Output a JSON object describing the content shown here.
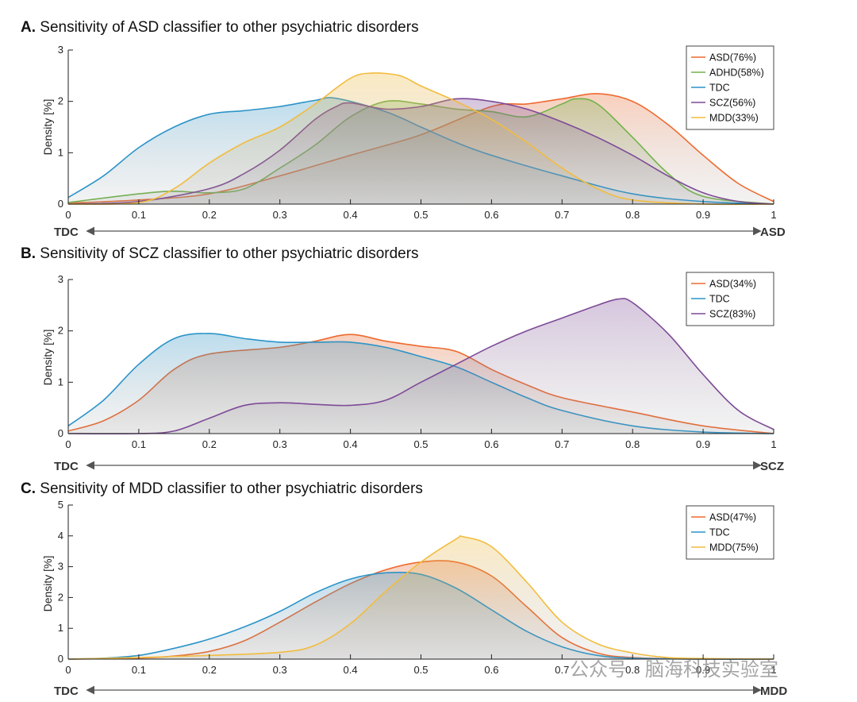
{
  "watermark": "公众号 · 脑海科技实验室",
  "colors": {
    "ASD": "#ED6A2F",
    "ADHD": "#72B34A",
    "TDC": "#2C94C8",
    "SCZ": "#7D4A97",
    "MDD": "#F2BC3E"
  },
  "chart_data": [
    {
      "type": "area",
      "panel_letter": "A.",
      "title": "Sensitivity of ASD classifier to other psychiatric disorders",
      "ylabel": "Density [%]",
      "xlim": [
        0,
        1
      ],
      "ylim": [
        0,
        3
      ],
      "xticks": [
        0,
        0.1,
        0.2,
        0.3,
        0.4,
        0.5,
        0.6,
        0.7,
        0.8,
        0.9,
        1
      ],
      "yticks": [
        0,
        1,
        2,
        3
      ],
      "left_label": "TDC",
      "right_label": "ASD",
      "legend_position": "top-right",
      "series": [
        {
          "key": "ASD",
          "name": "ASD(76%)",
          "x": [
            0,
            0.1,
            0.2,
            0.3,
            0.4,
            0.5,
            0.6,
            0.65,
            0.7,
            0.75,
            0.8,
            0.85,
            0.9,
            0.95,
            1
          ],
          "y": [
            0.02,
            0.08,
            0.2,
            0.55,
            0.95,
            1.35,
            1.9,
            1.95,
            2.05,
            2.15,
            2.0,
            1.55,
            0.95,
            0.4,
            0.05
          ]
        },
        {
          "key": "ADHD",
          "name": "ADHD(58%)",
          "x": [
            0,
            0.1,
            0.15,
            0.2,
            0.25,
            0.3,
            0.35,
            0.4,
            0.45,
            0.5,
            0.55,
            0.6,
            0.65,
            0.7,
            0.72,
            0.75,
            0.8,
            0.85,
            0.9,
            1
          ],
          "y": [
            0.03,
            0.2,
            0.25,
            0.22,
            0.3,
            0.7,
            1.15,
            1.7,
            2.0,
            1.95,
            1.85,
            1.8,
            1.7,
            1.95,
            2.05,
            1.95,
            1.3,
            0.6,
            0.15,
            0
          ]
        },
        {
          "key": "TDC",
          "name": "TDC",
          "x": [
            0,
            0.05,
            0.1,
            0.15,
            0.2,
            0.25,
            0.3,
            0.35,
            0.38,
            0.45,
            0.5,
            0.55,
            0.6,
            0.7,
            0.8,
            0.9,
            1
          ],
          "y": [
            0.13,
            0.55,
            1.1,
            1.5,
            1.75,
            1.82,
            1.9,
            2.02,
            2.06,
            1.8,
            1.5,
            1.2,
            0.95,
            0.55,
            0.2,
            0.05,
            0
          ]
        },
        {
          "key": "SCZ",
          "name": "SCZ(56%)",
          "x": [
            0,
            0.1,
            0.2,
            0.25,
            0.3,
            0.35,
            0.38,
            0.4,
            0.45,
            0.5,
            0.55,
            0.6,
            0.65,
            0.7,
            0.75,
            0.8,
            0.85,
            0.9,
            0.95,
            1
          ],
          "y": [
            0,
            0.05,
            0.3,
            0.6,
            1.05,
            1.65,
            1.9,
            1.97,
            1.85,
            1.9,
            2.05,
            2.0,
            1.85,
            1.6,
            1.3,
            0.95,
            0.55,
            0.22,
            0.05,
            0
          ]
        },
        {
          "key": "MDD",
          "name": "MDD(33%)",
          "x": [
            0,
            0.1,
            0.15,
            0.2,
            0.25,
            0.3,
            0.35,
            0.4,
            0.43,
            0.47,
            0.5,
            0.55,
            0.6,
            0.65,
            0.7,
            0.75,
            0.8,
            0.9,
            1
          ],
          "y": [
            0,
            0.03,
            0.3,
            0.8,
            1.2,
            1.5,
            1.95,
            2.45,
            2.55,
            2.5,
            2.3,
            2.0,
            1.65,
            1.2,
            0.7,
            0.3,
            0.08,
            0,
            0
          ]
        }
      ]
    },
    {
      "type": "area",
      "panel_letter": "B.",
      "title": "Sensitivity of SCZ classifier to other psychiatric disorders",
      "ylabel": "Density [%]",
      "xlim": [
        0,
        1
      ],
      "ylim": [
        0,
        3
      ],
      "xticks": [
        0,
        0.1,
        0.2,
        0.3,
        0.4,
        0.5,
        0.6,
        0.7,
        0.8,
        0.9,
        1
      ],
      "yticks": [
        0,
        1,
        2,
        3
      ],
      "left_label": "TDC",
      "right_label": "SCZ",
      "legend_position": "top-right",
      "series": [
        {
          "key": "ASD",
          "name": "ASD(34%)",
          "x": [
            0,
            0.05,
            0.1,
            0.15,
            0.2,
            0.3,
            0.35,
            0.4,
            0.45,
            0.5,
            0.55,
            0.6,
            0.65,
            0.7,
            0.8,
            0.9,
            1
          ],
          "y": [
            0.05,
            0.25,
            0.65,
            1.25,
            1.55,
            1.68,
            1.8,
            1.93,
            1.8,
            1.7,
            1.6,
            1.25,
            0.95,
            0.7,
            0.42,
            0.15,
            0
          ]
        },
        {
          "key": "TDC",
          "name": "TDC",
          "x": [
            0,
            0.05,
            0.1,
            0.15,
            0.2,
            0.25,
            0.3,
            0.35,
            0.4,
            0.45,
            0.5,
            0.55,
            0.6,
            0.65,
            0.7,
            0.8,
            0.9,
            1
          ],
          "y": [
            0.15,
            0.65,
            1.35,
            1.85,
            1.95,
            1.85,
            1.78,
            1.78,
            1.78,
            1.68,
            1.5,
            1.3,
            1.0,
            0.7,
            0.45,
            0.15,
            0.03,
            0
          ]
        },
        {
          "key": "SCZ",
          "name": "SCZ(83%)",
          "x": [
            0,
            0.1,
            0.15,
            0.2,
            0.25,
            0.3,
            0.35,
            0.4,
            0.45,
            0.5,
            0.55,
            0.6,
            0.65,
            0.7,
            0.75,
            0.78,
            0.8,
            0.85,
            0.9,
            0.95,
            1
          ],
          "y": [
            0,
            0,
            0.05,
            0.3,
            0.55,
            0.6,
            0.57,
            0.55,
            0.65,
            1.0,
            1.35,
            1.7,
            2.0,
            2.25,
            2.5,
            2.62,
            2.55,
            1.95,
            1.15,
            0.45,
            0.08
          ]
        }
      ]
    },
    {
      "type": "area",
      "panel_letter": "C.",
      "title": "Sensitivity of MDD classifier to other psychiatric disorders",
      "ylabel": "Density [%]",
      "xlim": [
        0,
        1
      ],
      "ylim": [
        0,
        5
      ],
      "xticks": [
        0,
        0.1,
        0.2,
        0.3,
        0.4,
        0.5,
        0.6,
        0.7,
        0.8,
        0.9,
        1
      ],
      "yticks": [
        0,
        1,
        2,
        3,
        4,
        5
      ],
      "left_label": "TDC",
      "right_label": "MDD",
      "legend_position": "top-right",
      "series": [
        {
          "key": "ASD",
          "name": "ASD(47%)",
          "x": [
            0,
            0.1,
            0.15,
            0.2,
            0.25,
            0.3,
            0.35,
            0.4,
            0.45,
            0.5,
            0.55,
            0.6,
            0.65,
            0.7,
            0.75,
            0.8,
            0.9,
            1
          ],
          "y": [
            0,
            0.03,
            0.1,
            0.25,
            0.6,
            1.2,
            1.85,
            2.45,
            2.9,
            3.15,
            3.15,
            2.7,
            1.7,
            0.7,
            0.2,
            0.05,
            0,
            0
          ]
        },
        {
          "key": "TDC",
          "name": "TDC",
          "x": [
            0,
            0.05,
            0.1,
            0.15,
            0.2,
            0.25,
            0.3,
            0.35,
            0.4,
            0.45,
            0.5,
            0.55,
            0.6,
            0.65,
            0.7,
            0.75,
            0.8,
            0.9,
            1
          ],
          "y": [
            0,
            0.03,
            0.12,
            0.35,
            0.65,
            1.05,
            1.55,
            2.15,
            2.6,
            2.8,
            2.75,
            2.3,
            1.6,
            0.9,
            0.4,
            0.12,
            0.03,
            0,
            0
          ]
        },
        {
          "key": "MDD",
          "name": "MDD(75%)",
          "x": [
            0,
            0.1,
            0.2,
            0.3,
            0.35,
            0.4,
            0.45,
            0.5,
            0.55,
            0.56,
            0.6,
            0.65,
            0.7,
            0.75,
            0.8,
            0.85,
            0.9,
            1
          ],
          "y": [
            0,
            0.05,
            0.12,
            0.22,
            0.45,
            1.15,
            2.2,
            3.15,
            3.9,
            3.97,
            3.65,
            2.5,
            1.2,
            0.5,
            0.2,
            0.05,
            0.02,
            0
          ]
        }
      ]
    }
  ]
}
